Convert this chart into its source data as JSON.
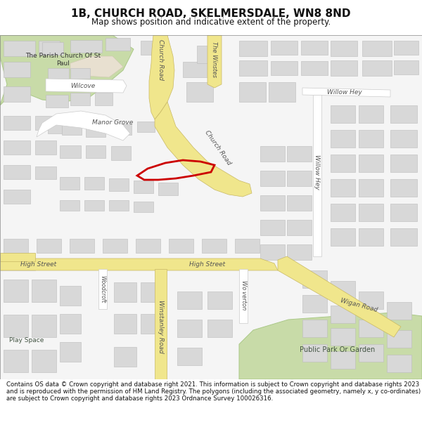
{
  "title_line1": "1B, CHURCH ROAD, SKELMERSDALE, WN8 8ND",
  "title_line2": "Map shows position and indicative extent of the property.",
  "footer_text": "Contains OS data © Crown copyright and database right 2021. This information is subject to Crown copyright and database rights 2023 and is reproduced with the permission of HM Land Registry. The polygons (including the associated geometry, namely x, y co-ordinates) are subject to Crown copyright and database rights 2023 Ordnance Survey 100026316.",
  "bg_color": "#f5f5f5",
  "road_yellow": "#f0e68c",
  "road_white": "#ffffff",
  "building_color": "#d8d8d8",
  "building_edge": "#bbbbbb",
  "green_color": "#c8dba8",
  "green_pale": "#e8e8d8",
  "property_color": "#cc0000",
  "road_label_color": "#555555",
  "text_color": "#111111"
}
